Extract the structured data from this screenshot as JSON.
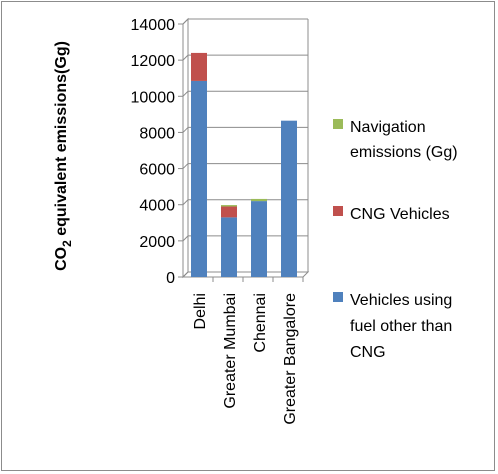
{
  "chart_data": {
    "type": "bar",
    "stacked": true,
    "categories": [
      "Delhi",
      "Greater Mumbai",
      "Chennai",
      "Greater Bangalore"
    ],
    "series": [
      {
        "name": "Vehicles using fuel other than CNG",
        "color": "#4f81bd",
        "values": [
          10850,
          3300,
          4200,
          8650
        ]
      },
      {
        "name": "CNG Vehicles",
        "color": "#c0504d",
        "values": [
          1550,
          600,
          0,
          0
        ]
      },
      {
        "name": "Navigation emissions (Gg)",
        "color": "#9bbb59",
        "values": [
          0,
          80,
          120,
          0
        ]
      }
    ],
    "ylabel": {
      "main": "CO",
      "sub": "2",
      "rest": " equivalent  emissions(Gg)"
    },
    "ylim": [
      0,
      14000
    ],
    "yticks": [
      "0",
      "2000",
      "4000",
      "6000",
      "8000",
      "10000",
      "12000",
      "14000"
    ],
    "grid": true,
    "legend": {
      "position": "right",
      "entries": [
        {
          "lines": [
            "Navigation",
            "emissions (Gg)"
          ],
          "color": "#9bbb59"
        },
        {
          "lines": [
            "CNG Vehicles"
          ],
          "color": "#c0504d"
        },
        {
          "lines": [
            "Vehicles using",
            "fuel other than",
            "CNG"
          ],
          "color": "#4f81bd"
        }
      ]
    }
  }
}
